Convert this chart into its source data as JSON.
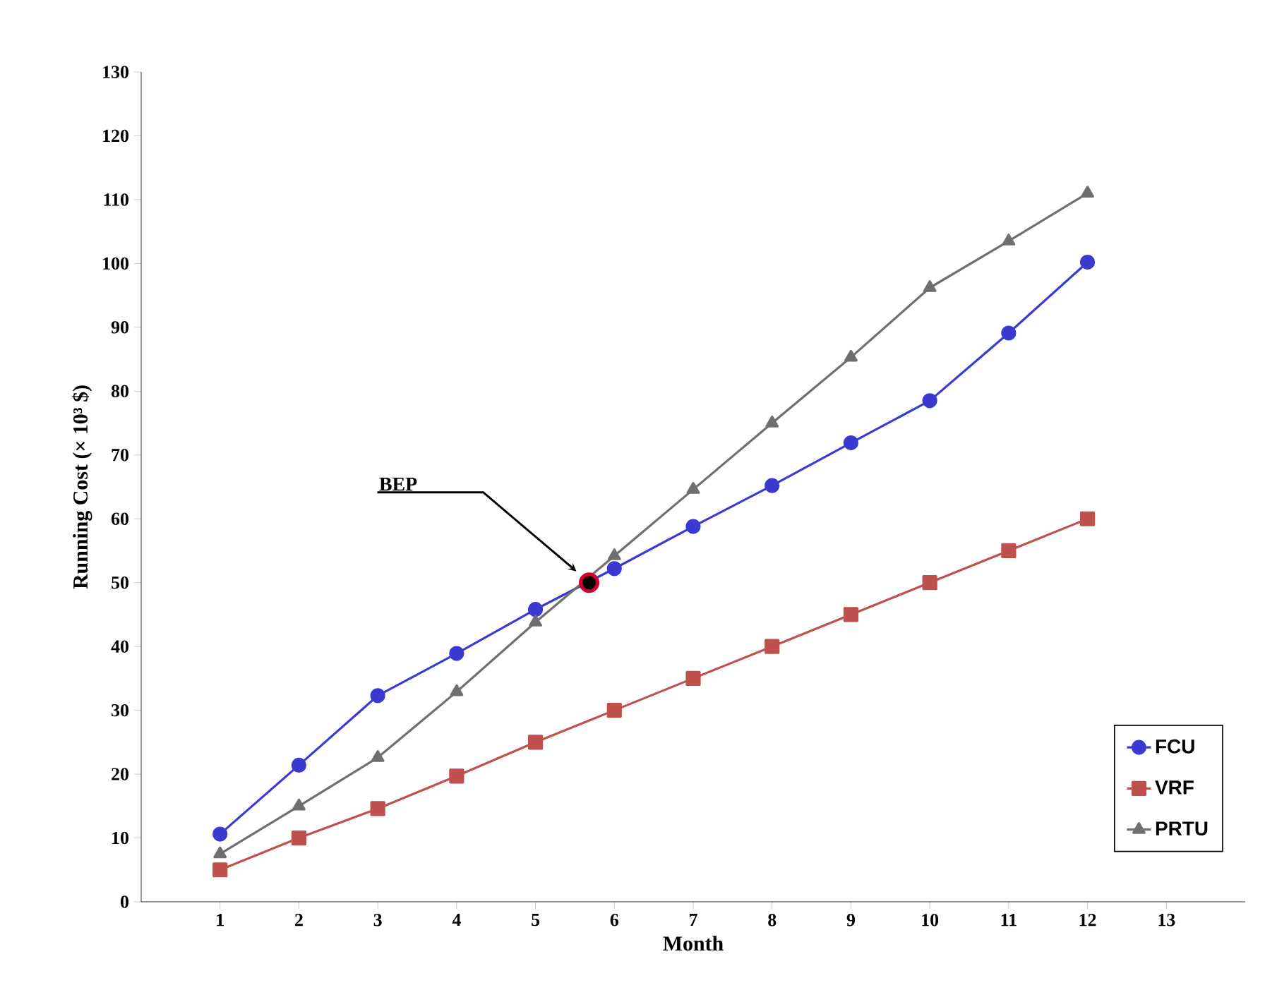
{
  "chart_data": {
    "type": "line",
    "xlabel": "Month",
    "ylabel": "Running Cost (× 10³ $)",
    "x": [
      1,
      2,
      3,
      4,
      5,
      6,
      7,
      8,
      9,
      10,
      11,
      12
    ],
    "series": [
      {
        "name": "FCU",
        "color": "#3a3ad0",
        "marker": "circle",
        "values": [
          10.6,
          21.4,
          32.3,
          38.9,
          45.8,
          52.2,
          58.8,
          65.2,
          71.9,
          78.5,
          89.1,
          100.2
        ]
      },
      {
        "name": "VRF",
        "color": "#c0504d",
        "marker": "square",
        "values": [
          5,
          10,
          14.6,
          19.7,
          25,
          30,
          35,
          40,
          45,
          50,
          55,
          60
        ]
      },
      {
        "name": "PRTU",
        "color": "#6f6f6f",
        "marker": "triangle",
        "values": [
          7.5,
          15,
          22.6,
          32.9,
          43.8,
          54.2,
          64.6,
          75,
          85.3,
          96.2,
          103.5,
          111
        ]
      },
      {
        "type": "scatter",
        "color": "#000000",
        "marker": "circle",
        "x": [
          5.68
        ],
        "values": [
          50
        ]
      }
    ],
    "xlim": [
      0,
      14
    ],
    "xticks": [
      1,
      2,
      3,
      4,
      5,
      6,
      7,
      8,
      9,
      10,
      11,
      12,
      13
    ],
    "ylim": [
      0,
      130
    ],
    "yticks": [
      0,
      10,
      20,
      30,
      40,
      50,
      60,
      70,
      80,
      90,
      100,
      110,
      120,
      130
    ],
    "annotations": [
      "BEP"
    ],
    "legend": "bottom right",
    "grid": false
  }
}
